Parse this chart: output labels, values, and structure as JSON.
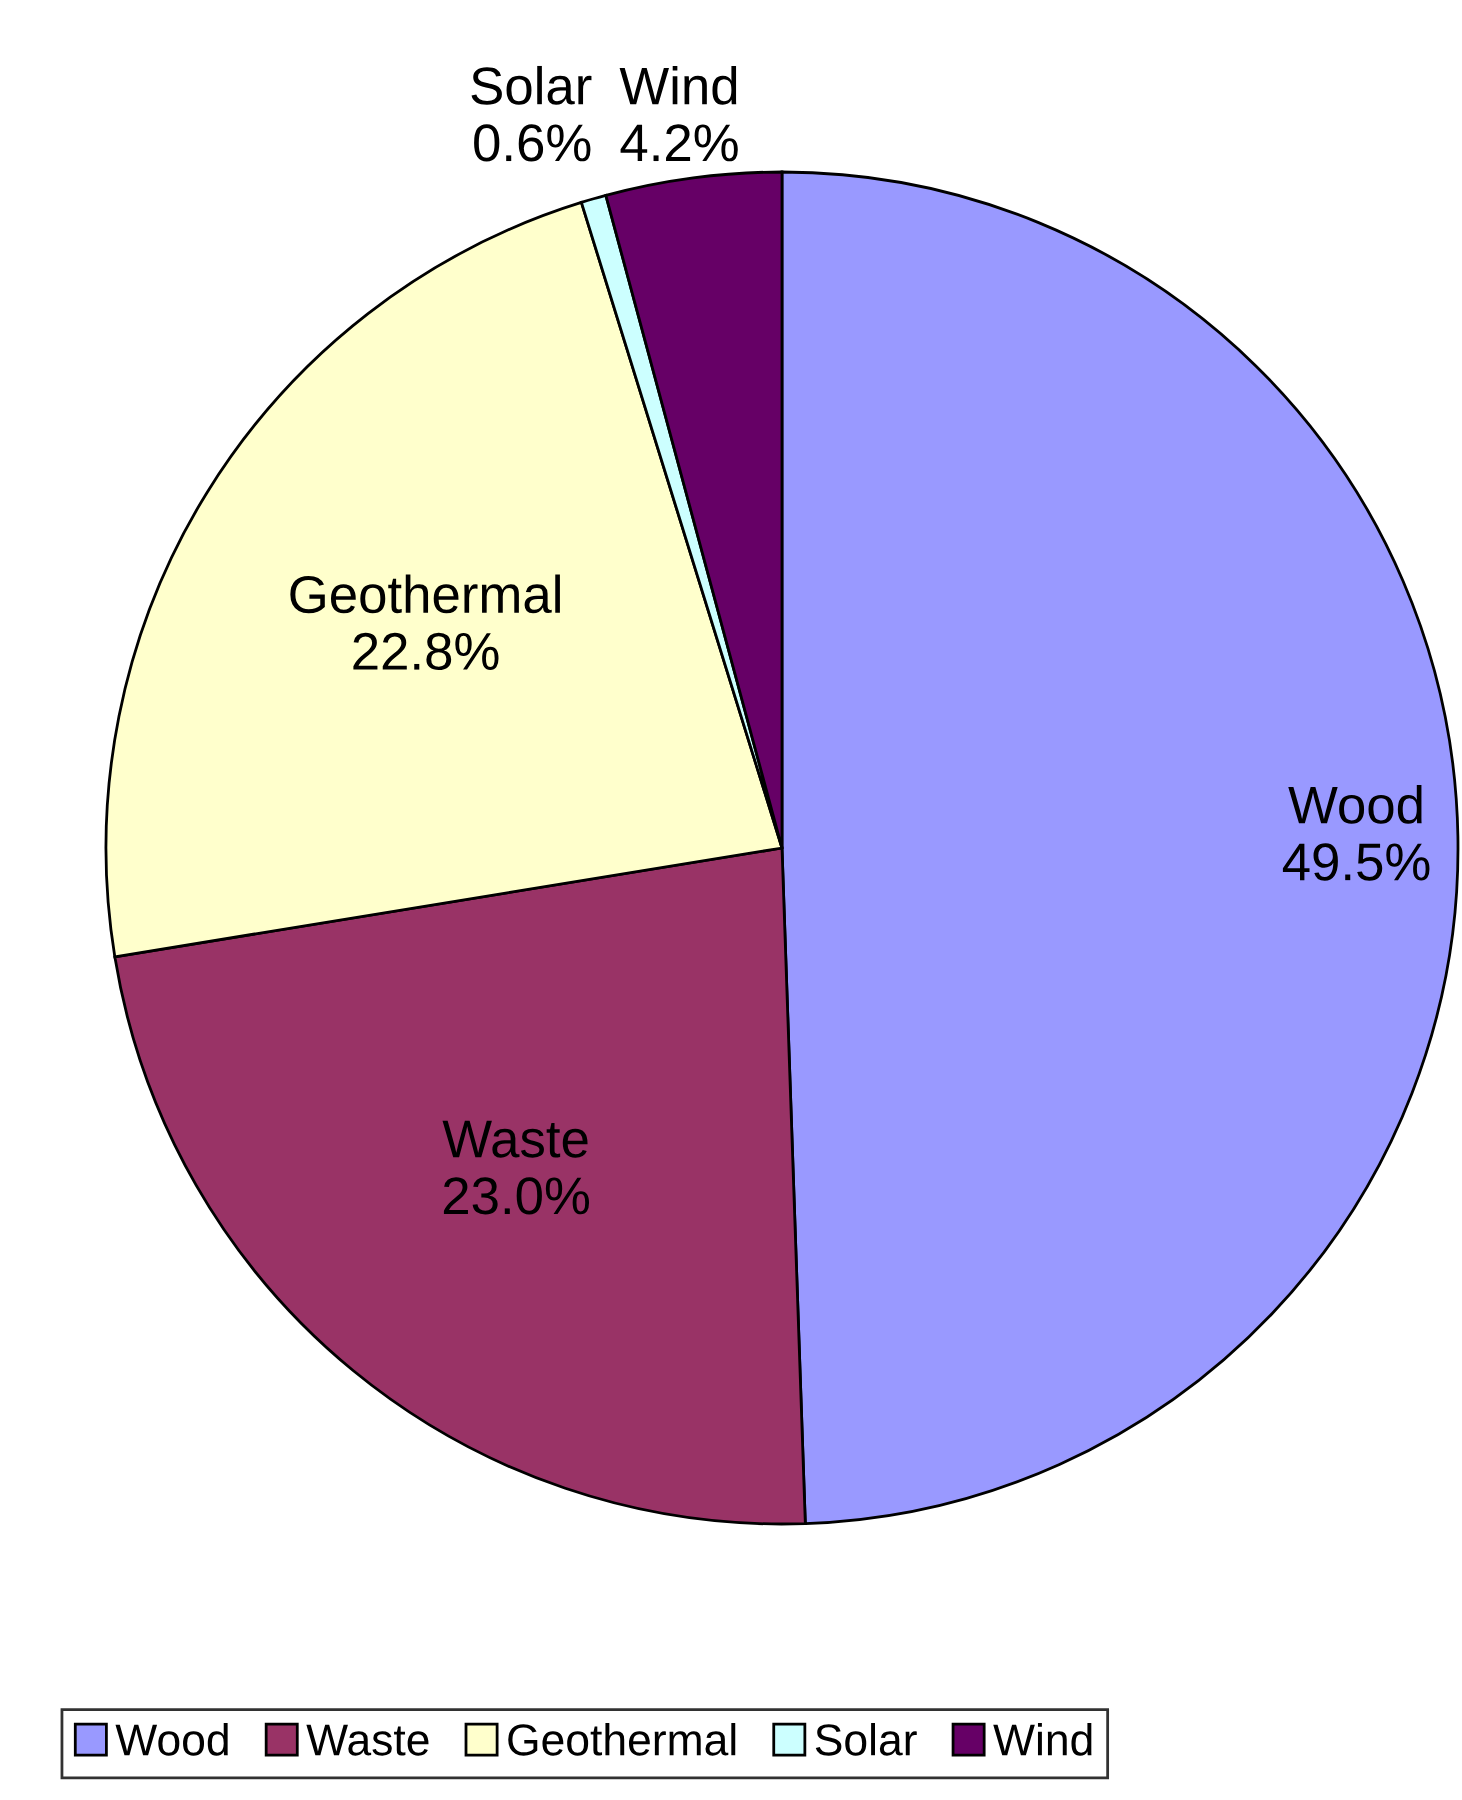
{
  "chart_data": {
    "type": "pie",
    "categories": [
      "Wood",
      "Waste",
      "Geothermal",
      "Solar",
      "Wind"
    ],
    "values": [
      49.5,
      23.0,
      22.8,
      0.6,
      4.2
    ],
    "value_labels": [
      "49.5%",
      "23.0%",
      "22.8%",
      "0.6%",
      "4.2%"
    ],
    "colors": [
      "#9999ff",
      "#993366",
      "#ffffcc",
      "#ccffff",
      "#660066"
    ],
    "legend": "bottom"
  }
}
